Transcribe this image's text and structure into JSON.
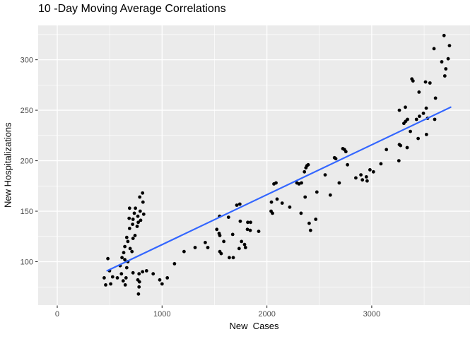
{
  "title": "10 -Day Moving Average Correlations",
  "chart_data": {
    "type": "scatter",
    "title": "10 -Day Moving Average Correlations",
    "xlabel": "New  Cases",
    "ylabel": "New Hospitalizations",
    "xlim": [
      -182,
      3938
    ],
    "ylim": [
      57,
      334
    ],
    "x_ticks": [
      0,
      1000,
      2000,
      3000
    ],
    "y_ticks": [
      100,
      150,
      200,
      250,
      300
    ],
    "x_minor": [
      500,
      1500,
      2500,
      3500
    ],
    "y_minor": [
      75,
      125,
      175,
      225,
      275,
      325
    ],
    "grid": true,
    "legend": "none",
    "panel_bg": "#EBEBEB",
    "grid_color": "#FFFFFF",
    "tick_color": "#333333",
    "tick_label_color": "#4D4D4D",
    "point_color": "#000000",
    "point_radius": 2.4,
    "smooth_line": {
      "color": "#3366FF",
      "width": 2.2,
      "x1": 476,
      "y1": 91,
      "x2": 3753,
      "y2": 253
    },
    "points": [
      [
        448,
        84
      ],
      [
        462,
        77
      ],
      [
        483,
        103
      ],
      [
        499,
        91
      ],
      [
        510,
        78
      ],
      [
        528,
        85
      ],
      [
        573,
        84
      ],
      [
        600,
        96
      ],
      [
        612,
        88
      ],
      [
        618,
        104
      ],
      [
        629,
        81
      ],
      [
        634,
        109
      ],
      [
        645,
        115
      ],
      [
        645,
        102
      ],
      [
        649,
        77
      ],
      [
        656,
        84
      ],
      [
        663,
        124
      ],
      [
        663,
        94
      ],
      [
        674,
        120
      ],
      [
        674,
        100
      ],
      [
        686,
        143
      ],
      [
        690,
        153
      ],
      [
        690,
        133
      ],
      [
        695,
        113
      ],
      [
        713,
        110
      ],
      [
        719,
        137
      ],
      [
        723,
        142
      ],
      [
        723,
        123
      ],
      [
        723,
        89
      ],
      [
        735,
        148
      ],
      [
        742,
        126
      ],
      [
        746,
        153
      ],
      [
        762,
        135
      ],
      [
        769,
        145
      ],
      [
        769,
        82
      ],
      [
        773,
        139
      ],
      [
        775,
        68
      ],
      [
        780,
        88
      ],
      [
        780,
        75
      ],
      [
        784,
        80
      ],
      [
        787,
        164
      ],
      [
        791,
        150
      ],
      [
        796,
        141
      ],
      [
        814,
        168
      ],
      [
        814,
        90
      ],
      [
        818,
        159
      ],
      [
        825,
        147
      ],
      [
        852,
        91
      ],
      [
        915,
        88
      ],
      [
        978,
        82
      ],
      [
        1000,
        78
      ],
      [
        1050,
        84
      ],
      [
        1119,
        98
      ],
      [
        1210,
        110
      ],
      [
        1315,
        114
      ],
      [
        1412,
        119
      ],
      [
        1436,
        114
      ],
      [
        1522,
        132
      ],
      [
        1544,
        128
      ],
      [
        1549,
        145
      ],
      [
        1551,
        126
      ],
      [
        1551,
        110
      ],
      [
        1564,
        108
      ],
      [
        1589,
        120
      ],
      [
        1634,
        144
      ],
      [
        1641,
        104
      ],
      [
        1674,
        127
      ],
      [
        1679,
        104
      ],
      [
        1713,
        156
      ],
      [
        1735,
        113
      ],
      [
        1742,
        157
      ],
      [
        1746,
        140
      ],
      [
        1758,
        120
      ],
      [
        1787,
        117
      ],
      [
        1796,
        114
      ],
      [
        1814,
        132
      ],
      [
        1817,
        139
      ],
      [
        1841,
        131
      ],
      [
        1844,
        139
      ],
      [
        1922,
        130
      ],
      [
        2040,
        150
      ],
      [
        2043,
        159
      ],
      [
        2053,
        148
      ],
      [
        2067,
        177
      ],
      [
        2087,
        178
      ],
      [
        2097,
        162
      ],
      [
        2146,
        158
      ],
      [
        2218,
        154
      ],
      [
        2286,
        178
      ],
      [
        2306,
        177
      ],
      [
        2326,
        148
      ],
      [
        2330,
        178
      ],
      [
        2358,
        189
      ],
      [
        2365,
        164
      ],
      [
        2372,
        193
      ],
      [
        2382,
        195
      ],
      [
        2394,
        196
      ],
      [
        2403,
        138
      ],
      [
        2416,
        131
      ],
      [
        2466,
        142
      ],
      [
        2477,
        169
      ],
      [
        2556,
        186
      ],
      [
        2605,
        166
      ],
      [
        2645,
        203
      ],
      [
        2657,
        202
      ],
      [
        2690,
        178
      ],
      [
        2724,
        212
      ],
      [
        2740,
        211
      ],
      [
        2753,
        209
      ],
      [
        2769,
        196
      ],
      [
        2848,
        183
      ],
      [
        2897,
        186
      ],
      [
        2911,
        181
      ],
      [
        2949,
        184
      ],
      [
        2956,
        180
      ],
      [
        2983,
        191
      ],
      [
        3016,
        189
      ],
      [
        3088,
        197
      ],
      [
        3140,
        211
      ],
      [
        3259,
        200
      ],
      [
        3264,
        216
      ],
      [
        3275,
        215
      ],
      [
        3338,
        213
      ],
      [
        3369,
        229
      ],
      [
        3443,
        222
      ],
      [
        3522,
        226
      ],
      [
        3264,
        250
      ],
      [
        3307,
        237
      ],
      [
        3321,
        253
      ],
      [
        3324,
        239
      ],
      [
        3341,
        241
      ],
      [
        3427,
        241
      ],
      [
        3455,
        244
      ],
      [
        3493,
        247
      ],
      [
        3520,
        252
      ],
      [
        3533,
        242
      ],
      [
        3601,
        241
      ],
      [
        3383,
        281
      ],
      [
        3394,
        279
      ],
      [
        3451,
        268
      ],
      [
        3513,
        278
      ],
      [
        3556,
        277
      ],
      [
        3594,
        311
      ],
      [
        3608,
        262
      ],
      [
        3668,
        298
      ],
      [
        3690,
        324
      ],
      [
        3697,
        284
      ],
      [
        3707,
        291
      ],
      [
        3729,
        301
      ],
      [
        3742,
        314
      ]
    ]
  }
}
